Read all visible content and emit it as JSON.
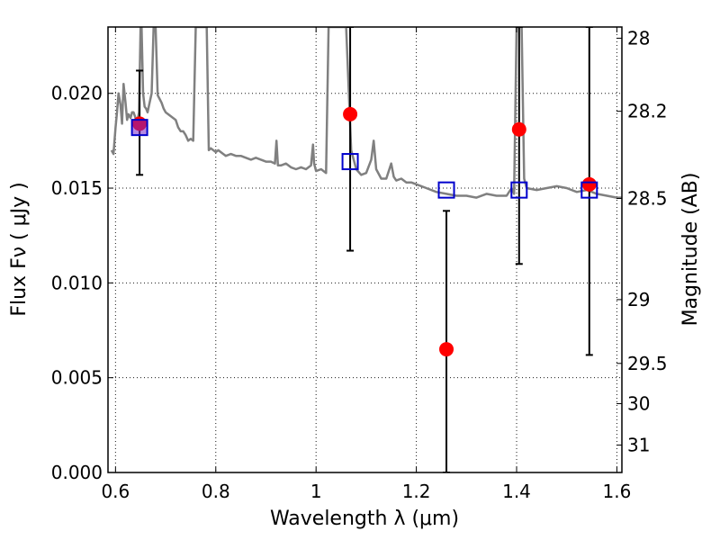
{
  "chart_data": {
    "type": "scatter",
    "xlabel": "Wavelength  λ (μm)",
    "ylabel": "Flux  Fν  ( μJy )",
    "y2label": "Magnitude (AB)",
    "xlim": [
      0.585,
      1.61
    ],
    "ylim": [
      0.0,
      0.0235
    ],
    "x_ticks": [
      0.6,
      0.8,
      1.0,
      1.2,
      1.4,
      1.6
    ],
    "x_tick_labels": [
      "0.6",
      "0.8",
      "1",
      "1.2",
      "1.4",
      "1.6"
    ],
    "y_ticks": [
      0.0,
      0.005,
      0.01,
      0.015,
      0.02
    ],
    "y_tick_labels": [
      "0.000",
      "0.005",
      "0.010",
      "0.015",
      "0.020"
    ],
    "y2_ticks": [
      28.0,
      28.2,
      28.5,
      29.0,
      29.5,
      30.0,
      31.0
    ],
    "y2_tick_labels": [
      "28",
      "28.2",
      "28.5",
      "29",
      "29.5",
      "30",
      "31"
    ],
    "grid": true,
    "colors": {
      "observed": "#ff0000",
      "model_photometry": "#0000cc",
      "sed": "#808080",
      "error_bar": "#000000"
    },
    "series": [
      {
        "name": "observed",
        "marker": "circle",
        "x": [
          0.648,
          1.068,
          1.26,
          1.405,
          1.545
        ],
        "y": [
          0.0184,
          0.0189,
          0.0065,
          0.0181,
          0.0152
        ],
        "yerr_low": [
          0.0157,
          0.0117,
          0.0,
          0.011,
          0.0062
        ],
        "yerr_high": [
          0.0212,
          0.0235,
          0.0138,
          0.0235,
          0.0235
        ]
      },
      {
        "name": "model_photometry",
        "marker": "square",
        "x": [
          0.648,
          1.068,
          1.26,
          1.405,
          1.545
        ],
        "y": [
          0.0182,
          0.0164,
          0.0149,
          0.0149,
          0.0149
        ]
      },
      {
        "name": "sed",
        "marker": "line",
        "x": [
          0.592,
          0.596,
          0.6,
          0.603,
          0.606,
          0.61,
          0.613,
          0.616,
          0.62,
          0.623,
          0.626,
          0.63,
          0.633,
          0.636,
          0.64,
          0.643,
          0.647,
          0.65,
          0.652,
          0.655,
          0.658,
          0.661,
          0.664,
          0.668,
          0.672,
          0.676,
          0.68,
          0.684,
          0.688,
          0.692,
          0.696,
          0.7,
          0.705,
          0.71,
          0.715,
          0.72,
          0.725,
          0.73,
          0.735,
          0.74,
          0.745,
          0.75,
          0.755,
          0.76,
          0.763,
          0.766,
          0.77,
          0.773,
          0.776,
          0.779,
          0.782,
          0.786,
          0.79,
          0.795,
          0.8,
          0.805,
          0.81,
          0.815,
          0.82,
          0.83,
          0.84,
          0.85,
          0.86,
          0.87,
          0.88,
          0.89,
          0.9,
          0.91,
          0.918,
          0.921,
          0.924,
          0.93,
          0.94,
          0.95,
          0.96,
          0.97,
          0.98,
          0.99,
          0.994,
          0.996,
          1.0,
          1.01,
          1.02,
          1.025,
          1.03,
          1.04,
          1.05,
          1.055,
          1.06,
          1.07,
          1.08,
          1.09,
          1.1,
          1.11,
          1.115,
          1.12,
          1.13,
          1.14,
          1.15,
          1.155,
          1.16,
          1.17,
          1.18,
          1.19,
          1.2,
          1.22,
          1.24,
          1.26,
          1.28,
          1.3,
          1.32,
          1.34,
          1.36,
          1.38,
          1.39,
          1.395,
          1.4,
          1.405,
          1.41,
          1.415,
          1.42,
          1.44,
          1.46,
          1.48,
          1.5,
          1.52,
          1.54,
          1.56,
          1.58,
          1.6,
          1.61
        ],
        "y": [
          0.017,
          0.0168,
          0.0182,
          0.019,
          0.02,
          0.0194,
          0.0184,
          0.0205,
          0.0195,
          0.0186,
          0.0189,
          0.0187,
          0.019,
          0.019,
          0.0187,
          0.0185,
          0.019,
          0.0235,
          0.0235,
          0.02,
          0.0193,
          0.0192,
          0.019,
          0.0195,
          0.02,
          0.0235,
          0.0235,
          0.0199,
          0.0197,
          0.0195,
          0.0192,
          0.019,
          0.0189,
          0.0188,
          0.0187,
          0.0186,
          0.0182,
          0.018,
          0.018,
          0.0178,
          0.0175,
          0.0176,
          0.0175,
          0.0235,
          0.0235,
          0.0235,
          0.0235,
          0.0235,
          0.0235,
          0.0235,
          0.0235,
          0.017,
          0.0171,
          0.017,
          0.0169,
          0.017,
          0.0169,
          0.0168,
          0.0167,
          0.0168,
          0.0167,
          0.0167,
          0.0166,
          0.0165,
          0.0166,
          0.0165,
          0.0164,
          0.0164,
          0.0163,
          0.0175,
          0.0162,
          0.0162,
          0.0163,
          0.0161,
          0.016,
          0.0161,
          0.016,
          0.0162,
          0.0173,
          0.0163,
          0.0159,
          0.016,
          0.0158,
          0.0235,
          0.0235,
          0.0235,
          0.0235,
          0.0235,
          0.0235,
          0.017,
          0.016,
          0.0157,
          0.0158,
          0.0165,
          0.0175,
          0.016,
          0.0155,
          0.0155,
          0.0163,
          0.0156,
          0.0154,
          0.0155,
          0.0153,
          0.0153,
          0.0152,
          0.015,
          0.0148,
          0.0147,
          0.0146,
          0.0146,
          0.0145,
          0.0147,
          0.0146,
          0.0146,
          0.015,
          0.0147,
          0.0235,
          0.0235,
          0.0235,
          0.0155,
          0.015,
          0.0149,
          0.015,
          0.0151,
          0.015,
          0.0148,
          0.0149,
          0.0147,
          0.0146,
          0.0145,
          0.0145
        ]
      }
    ]
  }
}
